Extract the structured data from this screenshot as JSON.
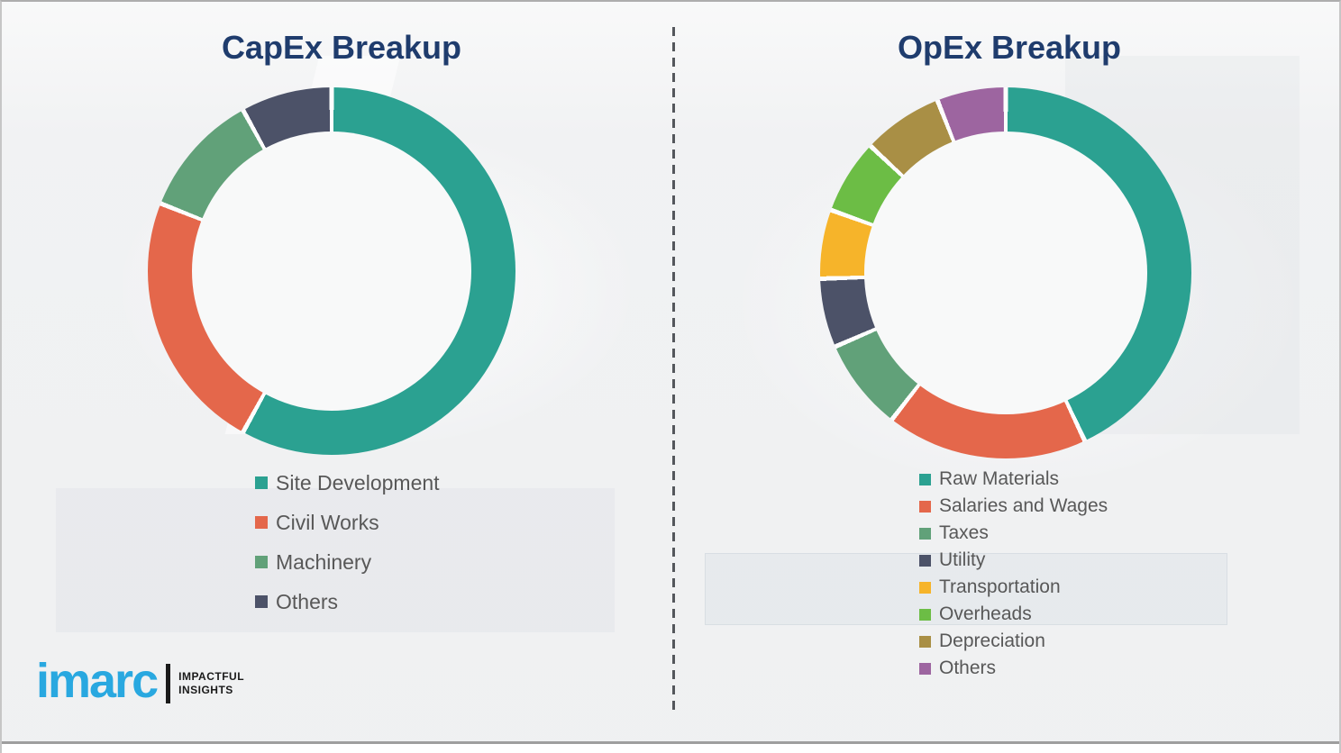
{
  "page": {
    "background_color": "#f1f2f3",
    "border_color": "#aeaeae",
    "divider_color": "#54575c",
    "title_color": "#1f3c6d",
    "legend_text_color": "#585858"
  },
  "chart_data": [
    {
      "type": "pie",
      "subtype": "donut",
      "title": "CapEx Breakup",
      "categories": [
        "Site Development",
        "Civil Works",
        "Machinery",
        "Others"
      ],
      "values": [
        58,
        23,
        11,
        8
      ],
      "values_unit": "percent-estimated",
      "colors": [
        "#2ba191",
        "#e4674b",
        "#61a179",
        "#4c5268"
      ],
      "start_angle_deg": 0,
      "direction": "clockwise",
      "hole_ratio": 0.76,
      "legend_position": "bottom-left",
      "data_labels": false
    },
    {
      "type": "pie",
      "subtype": "donut",
      "title": "OpEx Breakup",
      "categories": [
        "Raw Materials",
        "Salaries and Wages",
        "Taxes",
        "Utility",
        "Transportation",
        "Overheads",
        "Depreciation",
        "Others"
      ],
      "values": [
        43,
        17.5,
        8,
        6,
        6,
        6.5,
        7,
        6
      ],
      "values_unit": "percent-estimated",
      "colors": [
        "#2ba191",
        "#e4674b",
        "#61a179",
        "#4c5268",
        "#f6b42a",
        "#6cbd45",
        "#a98f45",
        "#9d65a0"
      ],
      "start_angle_deg": 0,
      "direction": "clockwise",
      "hole_ratio": 0.76,
      "legend_position": "bottom-left",
      "data_labels": false
    }
  ],
  "logo": {
    "brand": "imarc",
    "tagline_line1": "IMPACTFUL",
    "tagline_line2": "INSIGHTS",
    "brand_color": "#29a8e0"
  }
}
